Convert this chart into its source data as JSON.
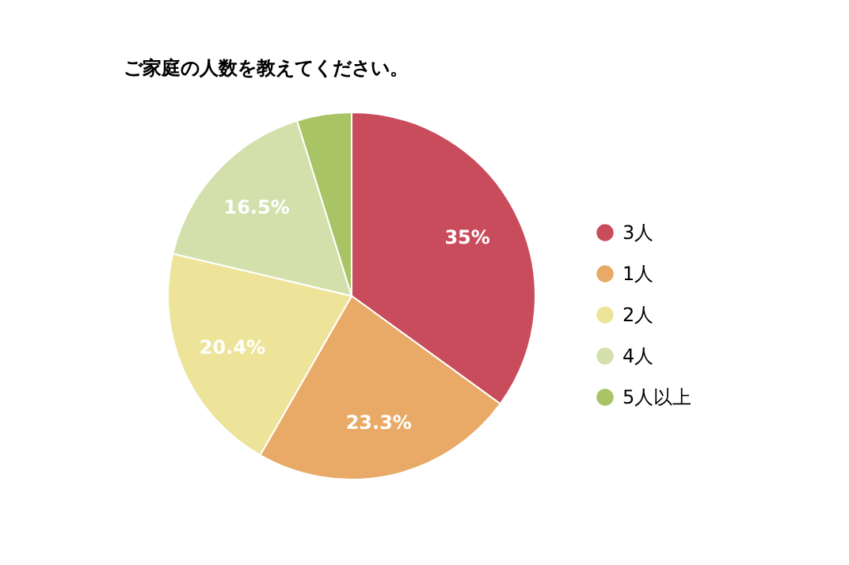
{
  "chart_data": {
    "type": "pie",
    "title": "ご家庭の人数を教えてください。",
    "categories": [
      "3人",
      "1人",
      "2人",
      "4人",
      "5人以上"
    ],
    "values": [
      35,
      23.3,
      20.4,
      16.5,
      4.8
    ],
    "value_labels": [
      "35%",
      "23.3%",
      "20.4%",
      "16.5%",
      null
    ],
    "colors": [
      "#c94c5c",
      "#e8aa66",
      "#ede49a",
      "#d3e0ac",
      "#a8c464"
    ],
    "legend": "right"
  }
}
